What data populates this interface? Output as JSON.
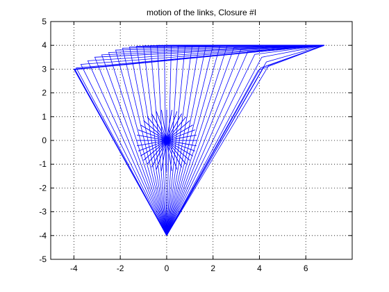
{
  "chart_data": {
    "type": "line",
    "title": "motion of the links, Closure #I",
    "xlabel": "",
    "ylabel": "",
    "xlim": [
      -5,
      8
    ],
    "ylim": [
      -5,
      5
    ],
    "xticks": [
      -4,
      -2,
      0,
      2,
      4,
      6
    ],
    "yticks": [
      -5,
      -4,
      -3,
      -2,
      -1,
      0,
      1,
      2,
      3,
      4,
      5
    ],
    "grid": true,
    "grid_style": "dotted",
    "line_color": "#0000ff",
    "fixed_pivots": {
      "ground": [
        0,
        -4
      ],
      "crank_center": [
        0,
        0
      ],
      "coupler_end": [
        6.8,
        4
      ]
    },
    "crank_radius": 1.3,
    "num_positions": 36,
    "knee_points": [
      [
        -4,
        3
      ],
      [
        -3.9,
        3.05
      ],
      [
        -3.7,
        3.2
      ],
      [
        -3.4,
        3.35
      ],
      [
        -3.1,
        3.5
      ],
      [
        -2.8,
        3.6
      ],
      [
        -2.5,
        3.7
      ],
      [
        -2.2,
        3.8
      ],
      [
        -1.9,
        3.88
      ],
      [
        -1.6,
        3.93
      ],
      [
        -1.3,
        3.96
      ],
      [
        -1.0,
        3.98
      ],
      [
        -0.7,
        3.99
      ],
      [
        -0.4,
        4.0
      ],
      [
        -0.1,
        4.0
      ],
      [
        0.2,
        4.0
      ],
      [
        0.5,
        4.0
      ],
      [
        0.8,
        4.0
      ],
      [
        1.1,
        4.0
      ],
      [
        1.4,
        4.0
      ],
      [
        1.7,
        4.0
      ],
      [
        2.0,
        4.0
      ],
      [
        2.3,
        3.98
      ],
      [
        2.6,
        3.95
      ],
      [
        2.9,
        3.9
      ],
      [
        3.2,
        3.83
      ],
      [
        3.5,
        3.74
      ],
      [
        3.8,
        3.62
      ],
      [
        4.1,
        3.5
      ],
      [
        4.3,
        3.3
      ],
      [
        4.4,
        3.15
      ],
      [
        4.2,
        3.1
      ],
      [
        4.05,
        3.05
      ],
      [
        3.95,
        2.95
      ],
      [
        -3.95,
        2.98
      ],
      [
        -3.98,
        2.99
      ]
    ]
  }
}
